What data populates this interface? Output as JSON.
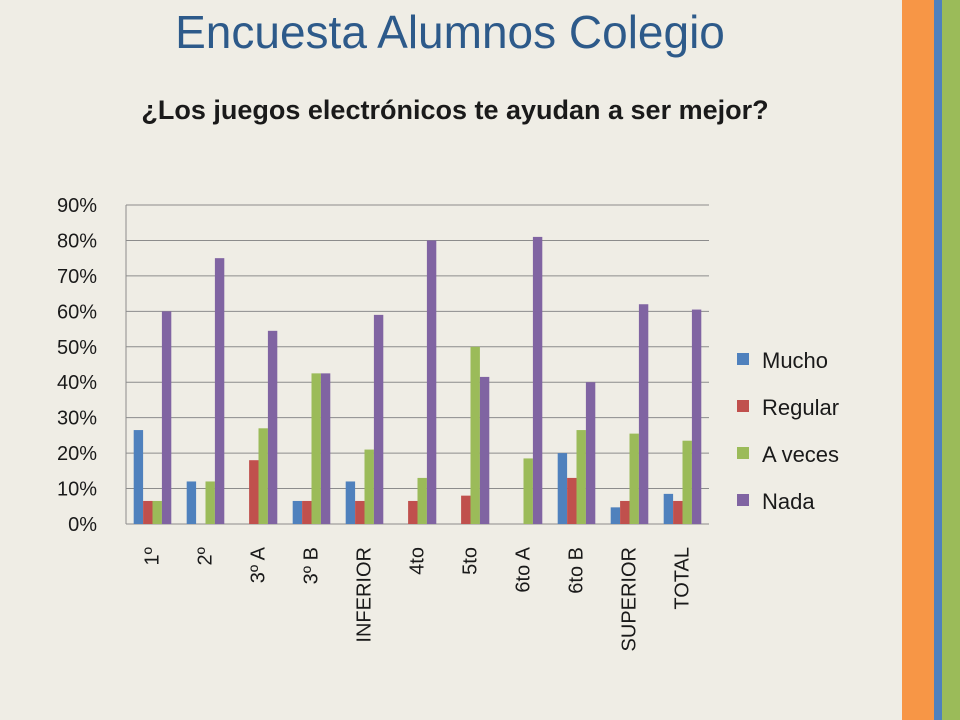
{
  "slide": {
    "title": "Encuesta Alumnos Colegio"
  },
  "colors": {
    "background": "#efede5",
    "stripe_orange": "#f79646",
    "stripe_blue": "#4f81bd",
    "stripe_green": "#9bbb59",
    "title_blue": "#2d5a8a"
  },
  "chart_data": {
    "type": "bar",
    "title": "¿Los juegos electrónicos te ayudan a ser mejor?",
    "xlabel": "",
    "ylabel": "",
    "categories": [
      "1º",
      "2º",
      "3º A",
      "3º B",
      "INFERIOR",
      "4to",
      "5to",
      "6to A",
      "6to B",
      "SUPERIOR",
      "TOTAL"
    ],
    "series": [
      {
        "name": "Mucho",
        "color": "#4f81bd",
        "values": [
          0.265,
          0.12,
          0,
          0.065,
          0.12,
          0,
          0,
          0,
          0.2,
          0.047,
          0.085
        ]
      },
      {
        "name": "Regular",
        "color": "#c0504d",
        "values": [
          0.065,
          0,
          0.18,
          0.065,
          0.065,
          0.065,
          0.08,
          0,
          0.13,
          0.065,
          0.065
        ]
      },
      {
        "name": "A veces",
        "color": "#9bbb59",
        "values": [
          0.065,
          0.12,
          0.27,
          0.425,
          0.21,
          0.13,
          0.5,
          0.185,
          0.265,
          0.255,
          0.235
        ]
      },
      {
        "name": "Nada",
        "color": "#8064a2",
        "values": [
          0.6,
          0.75,
          0.545,
          0.425,
          0.59,
          0.8,
          0.415,
          0.81,
          0.4,
          0.62,
          0.605
        ]
      }
    ],
    "ylim": [
      0,
      0.9
    ],
    "yticks": [
      "0%",
      "10%",
      "20%",
      "30%",
      "40%",
      "50%",
      "60%",
      "70%",
      "80%",
      "90%"
    ],
    "grid": true,
    "legend_position": "right"
  }
}
